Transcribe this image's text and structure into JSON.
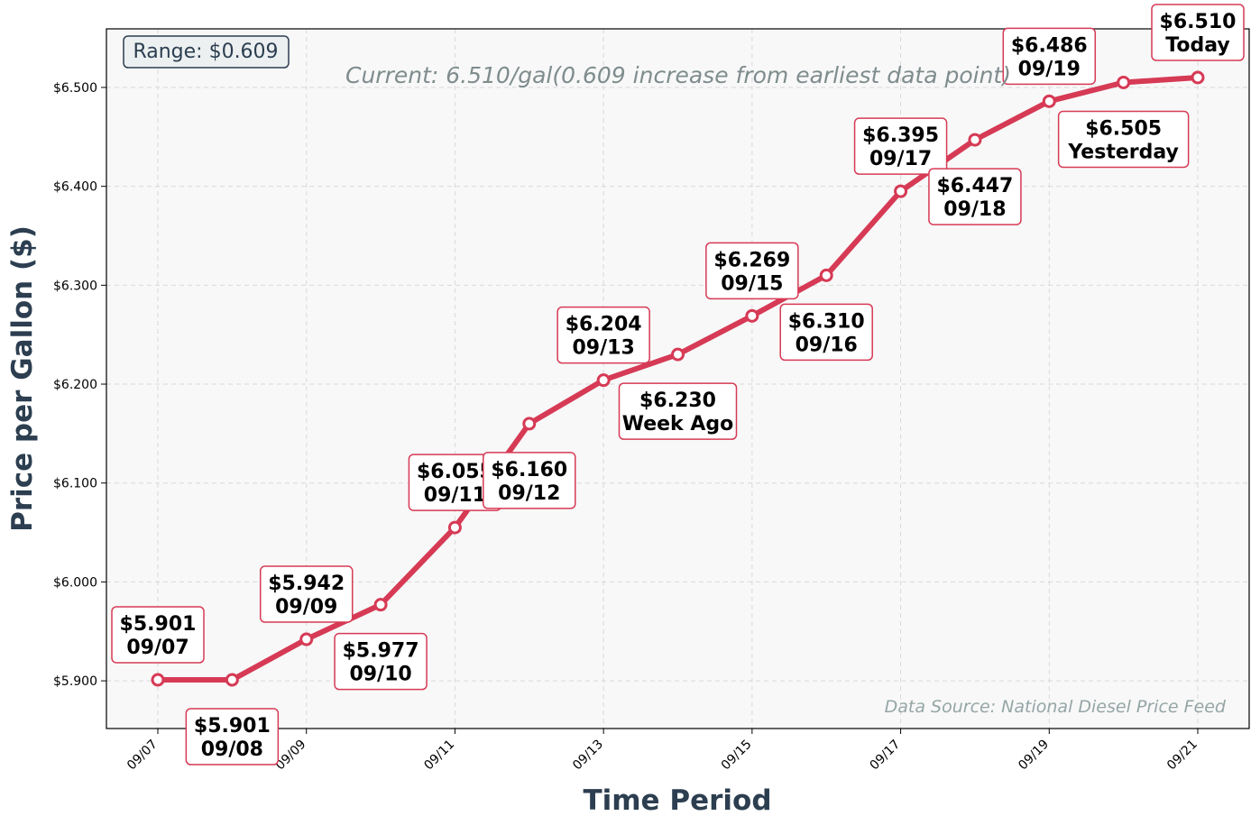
{
  "chart_data": {
    "type": "line",
    "x": [
      "09/07",
      "09/08",
      "09/09",
      "09/10",
      "09/11",
      "09/12",
      "09/13",
      "09/14",
      "09/15",
      "09/16",
      "09/17",
      "09/18",
      "09/19",
      "09/20",
      "09/21"
    ],
    "x_tick_labels": [
      "09/07",
      "09/09",
      "09/11",
      "09/13",
      "09/15",
      "09/17",
      "09/19",
      "09/21"
    ],
    "series": [
      {
        "values": [
          5.901,
          5.901,
          5.942,
          5.977,
          6.055,
          6.16,
          6.204,
          6.23,
          6.269,
          6.31,
          6.395,
          6.447,
          6.486,
          6.505,
          6.51
        ]
      }
    ],
    "point_labels": [
      {
        "price": "$5.901",
        "tag": "09/07",
        "pos": "above"
      },
      {
        "price": "$5.901",
        "tag": "09/08",
        "pos": "below"
      },
      {
        "price": "$5.942",
        "tag": "09/09",
        "pos": "above"
      },
      {
        "price": "$5.977",
        "tag": "09/10",
        "pos": "below"
      },
      {
        "price": "$6.055",
        "tag": "09/11",
        "pos": "above"
      },
      {
        "price": "$6.160",
        "tag": "09/12",
        "pos": "below"
      },
      {
        "price": "$6.204",
        "tag": "09/13",
        "pos": "above"
      },
      {
        "price": "$6.230",
        "tag": "Week Ago",
        "pos": "below"
      },
      {
        "price": "$6.269",
        "tag": "09/15",
        "pos": "above"
      },
      {
        "price": "$6.310",
        "tag": "09/16",
        "pos": "below"
      },
      {
        "price": "$6.395",
        "tag": "09/17",
        "pos": "above"
      },
      {
        "price": "$6.447",
        "tag": "09/18",
        "pos": "below"
      },
      {
        "price": "$6.486",
        "tag": "09/19",
        "pos": "above"
      },
      {
        "price": "$6.505",
        "tag": "Yesterday",
        "pos": "below"
      },
      {
        "price": "$6.510",
        "tag": "Today",
        "pos": "above"
      }
    ],
    "y_ticks": [
      5.9,
      6.0,
      6.1,
      6.2,
      6.3,
      6.4,
      6.5
    ],
    "y_tick_labels": [
      "$5.900",
      "$6.000",
      "$6.100",
      "$6.200",
      "$6.300",
      "$6.400",
      "$6.500"
    ],
    "ylim": [
      5.85,
      6.555
    ],
    "xlabel": "Time Period",
    "ylabel": "Price per Gallon ($)",
    "range_text": "Range: $0.609",
    "current_text": "Current: 6.510/gal(0.609 increase from earliest data point)",
    "source_text": "Data Source: National Diesel Price Feed",
    "grid": true,
    "line_color": "#d63a55",
    "plot_background": "#f8f8f8"
  }
}
